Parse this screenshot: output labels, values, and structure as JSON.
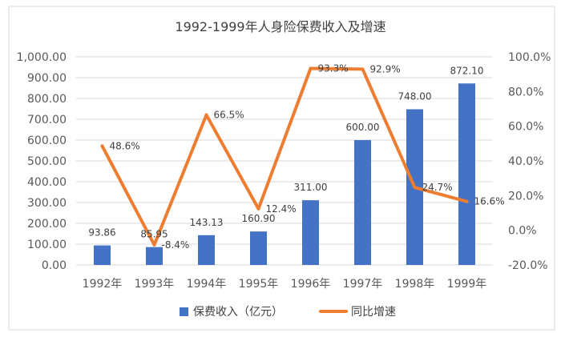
{
  "chart_data": {
    "type": "bar",
    "title": "1992-1999年人身险保费收入及增速",
    "categories": [
      "1992年",
      "1993年",
      "1994年",
      "1995年",
      "1996年",
      "1997年",
      "1998年",
      "1999年"
    ],
    "series": [
      {
        "name": "保费收入（亿元）",
        "type": "bar",
        "axis": "left",
        "values": [
          93.86,
          85.95,
          143.13,
          160.9,
          311.0,
          600.0,
          748.0,
          872.1
        ],
        "labels": [
          "93.86",
          "85.95",
          "143.13",
          "160.90",
          "311.00",
          "600.00",
          "748.00",
          "872.10"
        ]
      },
      {
        "name": "同比增速",
        "type": "line",
        "axis": "right",
        "values": [
          48.6,
          -8.4,
          66.5,
          12.4,
          93.3,
          92.9,
          24.7,
          16.6
        ],
        "labels": [
          "48.6%",
          "-8.4%",
          "66.5%",
          "12.4%",
          "93.3%",
          "92.9%",
          "24.7%",
          "16.6%"
        ]
      }
    ],
    "y_left": {
      "min": 0,
      "max": 1000,
      "ticks": [
        "0.00",
        "100.00",
        "200.00",
        "300.00",
        "400.00",
        "500.00",
        "600.00",
        "700.00",
        "800.00",
        "900.00",
        "1,000.00"
      ]
    },
    "y_right": {
      "min": -20,
      "max": 100,
      "ticks": [
        "-20.0%",
        "0.0%",
        "20.0%",
        "40.0%",
        "60.0%",
        "80.0%",
        "100.0%"
      ]
    },
    "grid": true,
    "legend_position": "bottom",
    "colors": {
      "bar": "#4472C4",
      "line": "#ED7D31",
      "grid": "#d9d9d9",
      "text": "#595959"
    }
  }
}
